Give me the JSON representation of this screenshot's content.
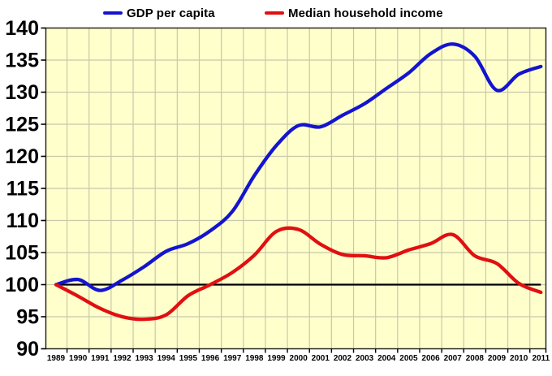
{
  "chart_data": {
    "type": "line",
    "title": "",
    "x_labels": [
      "1989",
      "1990",
      "1991",
      "1992",
      "1993",
      "1994",
      "1995",
      "1996",
      "1997",
      "1998",
      "1999",
      "2000",
      "2001",
      "2002",
      "2003",
      "2004",
      "2005",
      "2006",
      "2007",
      "2008",
      "2009",
      "2010",
      "2011"
    ],
    "series": [
      {
        "name": "GDP per capita",
        "color": "#1414cf",
        "values": [
          100.0,
          100.8,
          99.1,
          100.7,
          102.8,
          105.2,
          106.4,
          108.4,
          111.4,
          117.0,
          121.7,
          124.8,
          124.6,
          126.4,
          128.2,
          130.6,
          133.0,
          136.0,
          137.5,
          135.6,
          130.3,
          132.8,
          134.0
        ]
      },
      {
        "name": "Median household income",
        "color": "#e01010",
        "values": [
          100.0,
          98.2,
          96.3,
          95.0,
          94.6,
          95.3,
          98.3,
          100.0,
          101.9,
          104.6,
          108.3,
          108.6,
          106.3,
          104.7,
          104.5,
          104.2,
          105.4,
          106.4,
          107.8,
          104.5,
          103.3,
          100.2,
          98.8
        ]
      }
    ],
    "baseline": {
      "value": 100,
      "color": "#000000"
    },
    "ylim": [
      90,
      140
    ],
    "yticks": [
      90,
      95,
      100,
      105,
      110,
      115,
      120,
      125,
      130,
      135,
      140
    ],
    "grid": true,
    "legend_position": "top",
    "plot_background": "#ffffcc",
    "grid_color": "#c8c8aa",
    "axis_color": "#1a1a1a",
    "tick_label_color": "#000000"
  }
}
